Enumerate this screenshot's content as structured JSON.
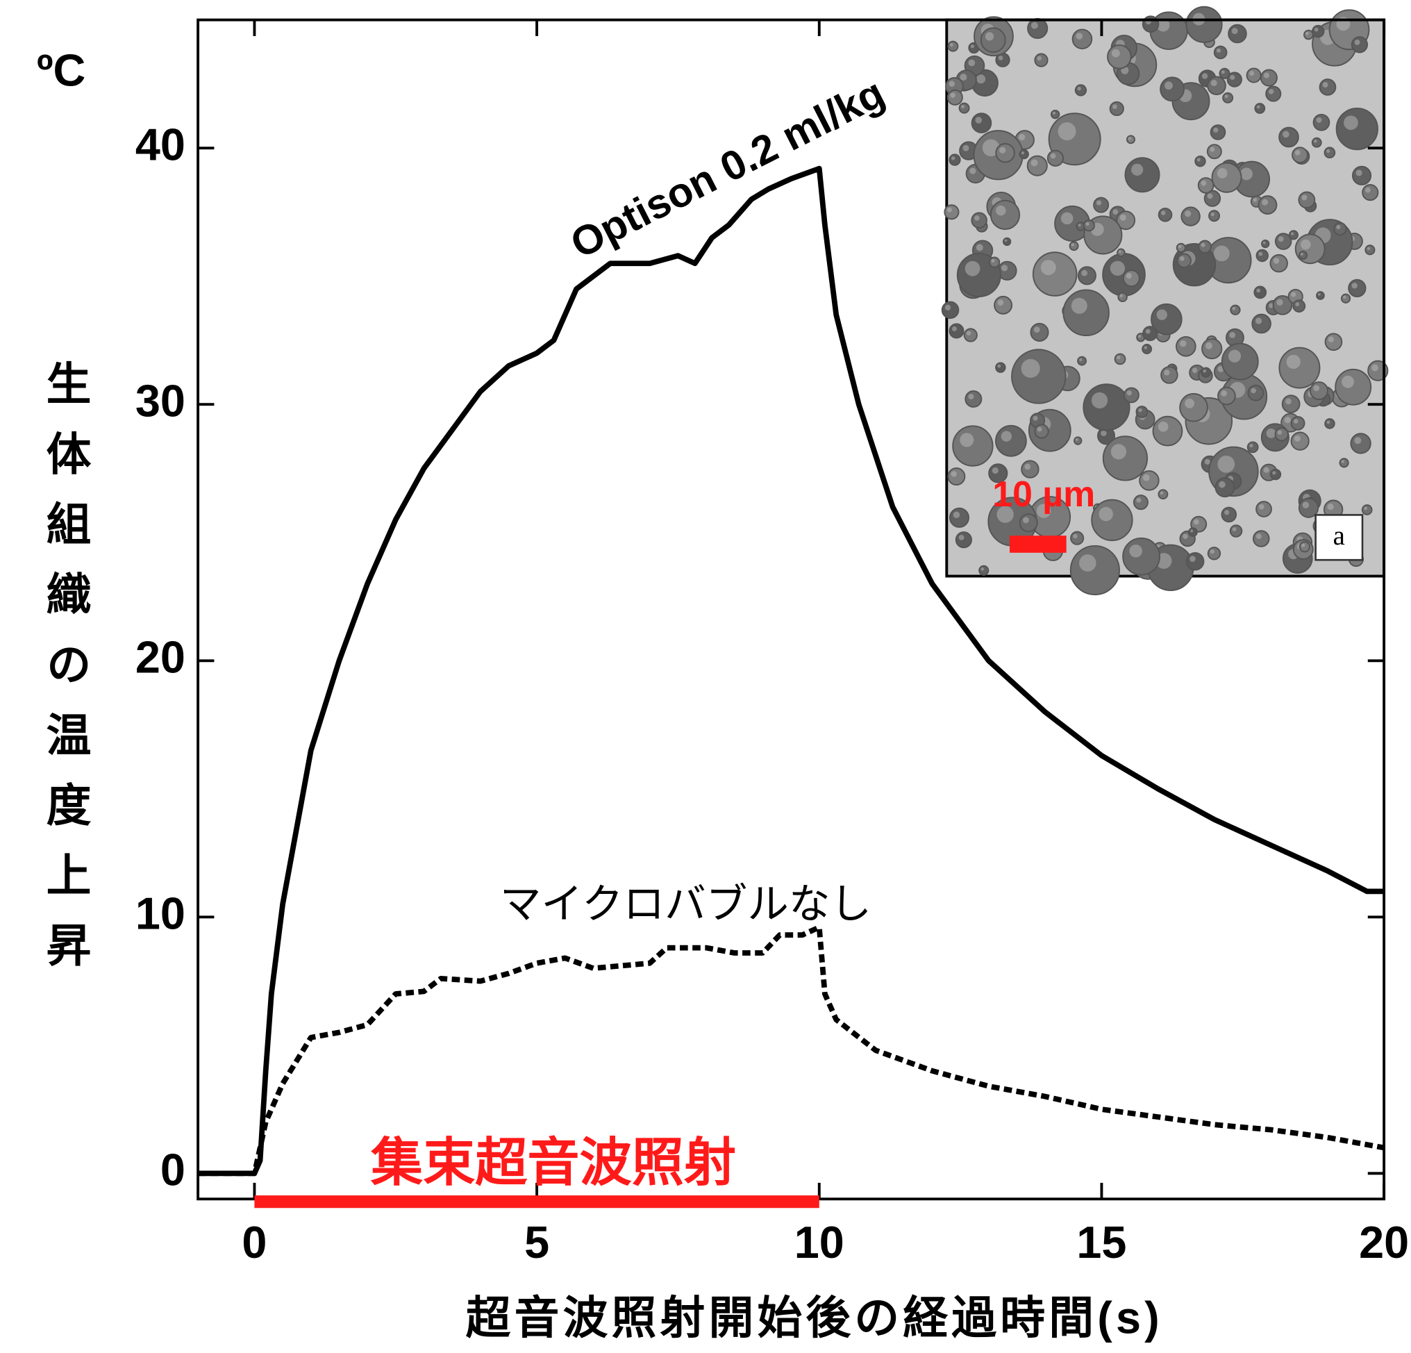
{
  "chart_data": {
    "type": "line",
    "unit_label": "ºC",
    "ylabel": "生体組織の温度上昇",
    "xlabel": "超音波照射開始後の経過時間(s)",
    "xlim": [
      -1,
      20
    ],
    "ylim": [
      -1,
      45
    ],
    "xticks": [
      0,
      5,
      10,
      15,
      20
    ],
    "yticks": [
      0,
      10,
      20,
      30,
      40
    ],
    "series": [
      {
        "name": "Optison 0.2 ml/kg",
        "color": "#000000",
        "style": "solid",
        "x": [
          -1,
          -0.5,
          0,
          0.1,
          0.2,
          0.3,
          0.5,
          0.75,
          1,
          1.5,
          2,
          2.5,
          3,
          3.5,
          4,
          4.5,
          5,
          5.3,
          5.7,
          6.3,
          7,
          7.5,
          7.8,
          8.1,
          8.4,
          8.8,
          9.1,
          9.5,
          10,
          10.1,
          10.3,
          10.7,
          11.3,
          12,
          13,
          14,
          15,
          16,
          17,
          18,
          19,
          19.7,
          20
        ],
        "values": [
          0,
          0,
          0,
          0.5,
          4,
          7,
          10.5,
          13.5,
          16.5,
          20,
          23,
          25.5,
          27.5,
          29,
          30.5,
          31.5,
          32,
          32.5,
          34.5,
          35.5,
          35.5,
          35.8,
          35.5,
          36.5,
          37,
          38,
          38.4,
          38.8,
          39.2,
          37,
          33.5,
          30,
          26,
          23,
          20,
          18,
          16.3,
          15,
          13.8,
          12.8,
          11.8,
          11,
          11
        ]
      },
      {
        "name": "マイクロバブルなし",
        "color": "#000000",
        "style": "dotted",
        "x": [
          -1,
          0,
          0.2,
          0.5,
          1,
          1.5,
          2,
          2.5,
          3,
          3.3,
          4,
          4.5,
          5,
          5.5,
          6,
          7,
          7.3,
          8,
          8.5,
          9,
          9.3,
          9.7,
          10,
          10.1,
          10.3,
          11,
          12,
          13,
          14,
          15,
          16,
          17,
          18,
          19,
          20
        ],
        "values": [
          0,
          0,
          2,
          3.5,
          5.3,
          5.5,
          5.8,
          7,
          7.1,
          7.6,
          7.5,
          7.8,
          8.2,
          8.4,
          8,
          8.2,
          8.8,
          8.8,
          8.6,
          8.6,
          9.3,
          9.3,
          9.6,
          7,
          6,
          4.8,
          4,
          3.4,
          3,
          2.5,
          2.2,
          1.9,
          1.7,
          1.4,
          1
        ]
      }
    ],
    "irradiation": {
      "label": "集束超音波照射",
      "start": 0,
      "end": 10,
      "color": "#ff1a1a"
    },
    "inset": {
      "scale_label": "10 µm",
      "panel_label": "a"
    }
  }
}
